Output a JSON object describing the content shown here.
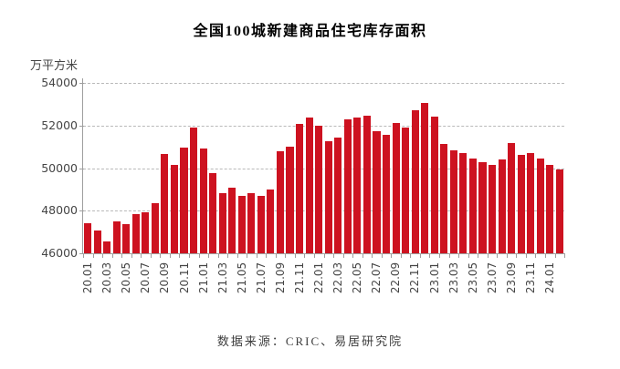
{
  "title": "全国100城新建商品住宅库存面积",
  "y_axis": {
    "unit": "万平方米"
  },
  "footer": "数据来源：CRIC、易居研究院",
  "colors": {
    "bar": "#cd1220",
    "grid": "#b9b9b9",
    "axis": "#9e9e9e",
    "tick_text": "#454545",
    "title_text": "#000000",
    "footer_text": "#3d3d3d"
  },
  "chart_data": {
    "type": "bar",
    "title": "全国100城新建商品住宅库存面积",
    "xlabel": "",
    "ylabel": "万平方米",
    "ylim": [
      46000,
      54000
    ],
    "y_tick_step": 2000,
    "y_tick_labels": [
      "46000",
      "48000",
      "50000",
      "52000",
      "54000"
    ],
    "grid": "horizontal-dashed",
    "legend": "none",
    "x_label_every": 2,
    "categories": [
      "20.01",
      "20.02",
      "20.03",
      "20.04",
      "20.05",
      "20.06",
      "20.07",
      "20.08",
      "20.09",
      "20.10",
      "20.11",
      "20.12",
      "21.01",
      "21.02",
      "21.03",
      "21.04",
      "21.05",
      "21.06",
      "21.07",
      "21.08",
      "21.09",
      "21.10",
      "21.11",
      "21.12",
      "22.01",
      "22.02",
      "22.03",
      "22.04",
      "22.05",
      "22.06",
      "22.07",
      "22.08",
      "22.09",
      "22.10",
      "22.11",
      "22.12",
      "23.01",
      "23.02",
      "23.03",
      "23.04",
      "23.05",
      "23.06",
      "23.07",
      "23.08",
      "23.09",
      "23.10",
      "23.11",
      "23.12",
      "24.01",
      "24.02"
    ],
    "values": [
      47400,
      47090,
      46570,
      47500,
      47350,
      47830,
      47920,
      48350,
      50670,
      50140,
      50960,
      51920,
      50910,
      49780,
      48820,
      49080,
      48710,
      48840,
      48700,
      49000,
      50790,
      51000,
      52080,
      52360,
      52000,
      51250,
      51420,
      52280,
      52360,
      52460,
      51750,
      51560,
      52100,
      51890,
      52720,
      53060,
      52400,
      51150,
      50820,
      50700,
      50440,
      50300,
      50160,
      50400,
      51180,
      50630,
      50720,
      50440,
      50130,
      49920
    ]
  }
}
